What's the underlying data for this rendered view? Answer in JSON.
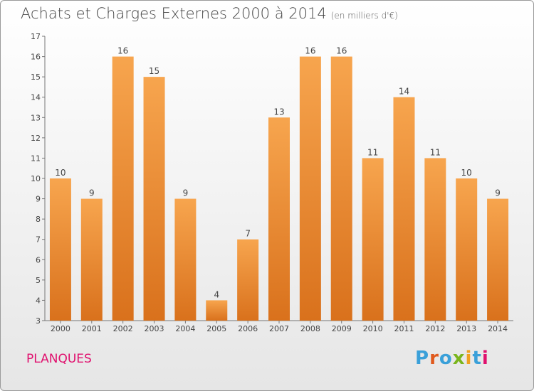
{
  "header": {
    "title": "Achats et Charges Externes 2000 à 2014",
    "unit": "(en milliers d'€)"
  },
  "footer": {
    "location": "PLANQUES",
    "logo": "Proxiti"
  },
  "colors": {
    "bar_light": "#f7a54e",
    "bar_dark": "#d9711c",
    "location_text": "#e0106e",
    "logo_letters": [
      "#3aa0d9",
      "#e05a1e",
      "#3aa0d9",
      "#7ab51d",
      "#f0a020",
      "#3aa0d9",
      "#e0106e"
    ]
  },
  "chart_data": {
    "type": "bar",
    "categories": [
      "2000",
      "2001",
      "2002",
      "2003",
      "2004",
      "2005",
      "2006",
      "2007",
      "2008",
      "2009",
      "2010",
      "2011",
      "2012",
      "2013",
      "2014"
    ],
    "values": [
      10,
      9,
      16,
      15,
      9,
      4,
      7,
      13,
      16,
      16,
      11,
      14,
      11,
      10,
      9
    ],
    "yticks": [
      3,
      4,
      5,
      6,
      7,
      8,
      9,
      10,
      11,
      12,
      13,
      14,
      15,
      16,
      17
    ],
    "ylim": [
      3,
      17
    ],
    "grid": false,
    "data_labels": true
  }
}
